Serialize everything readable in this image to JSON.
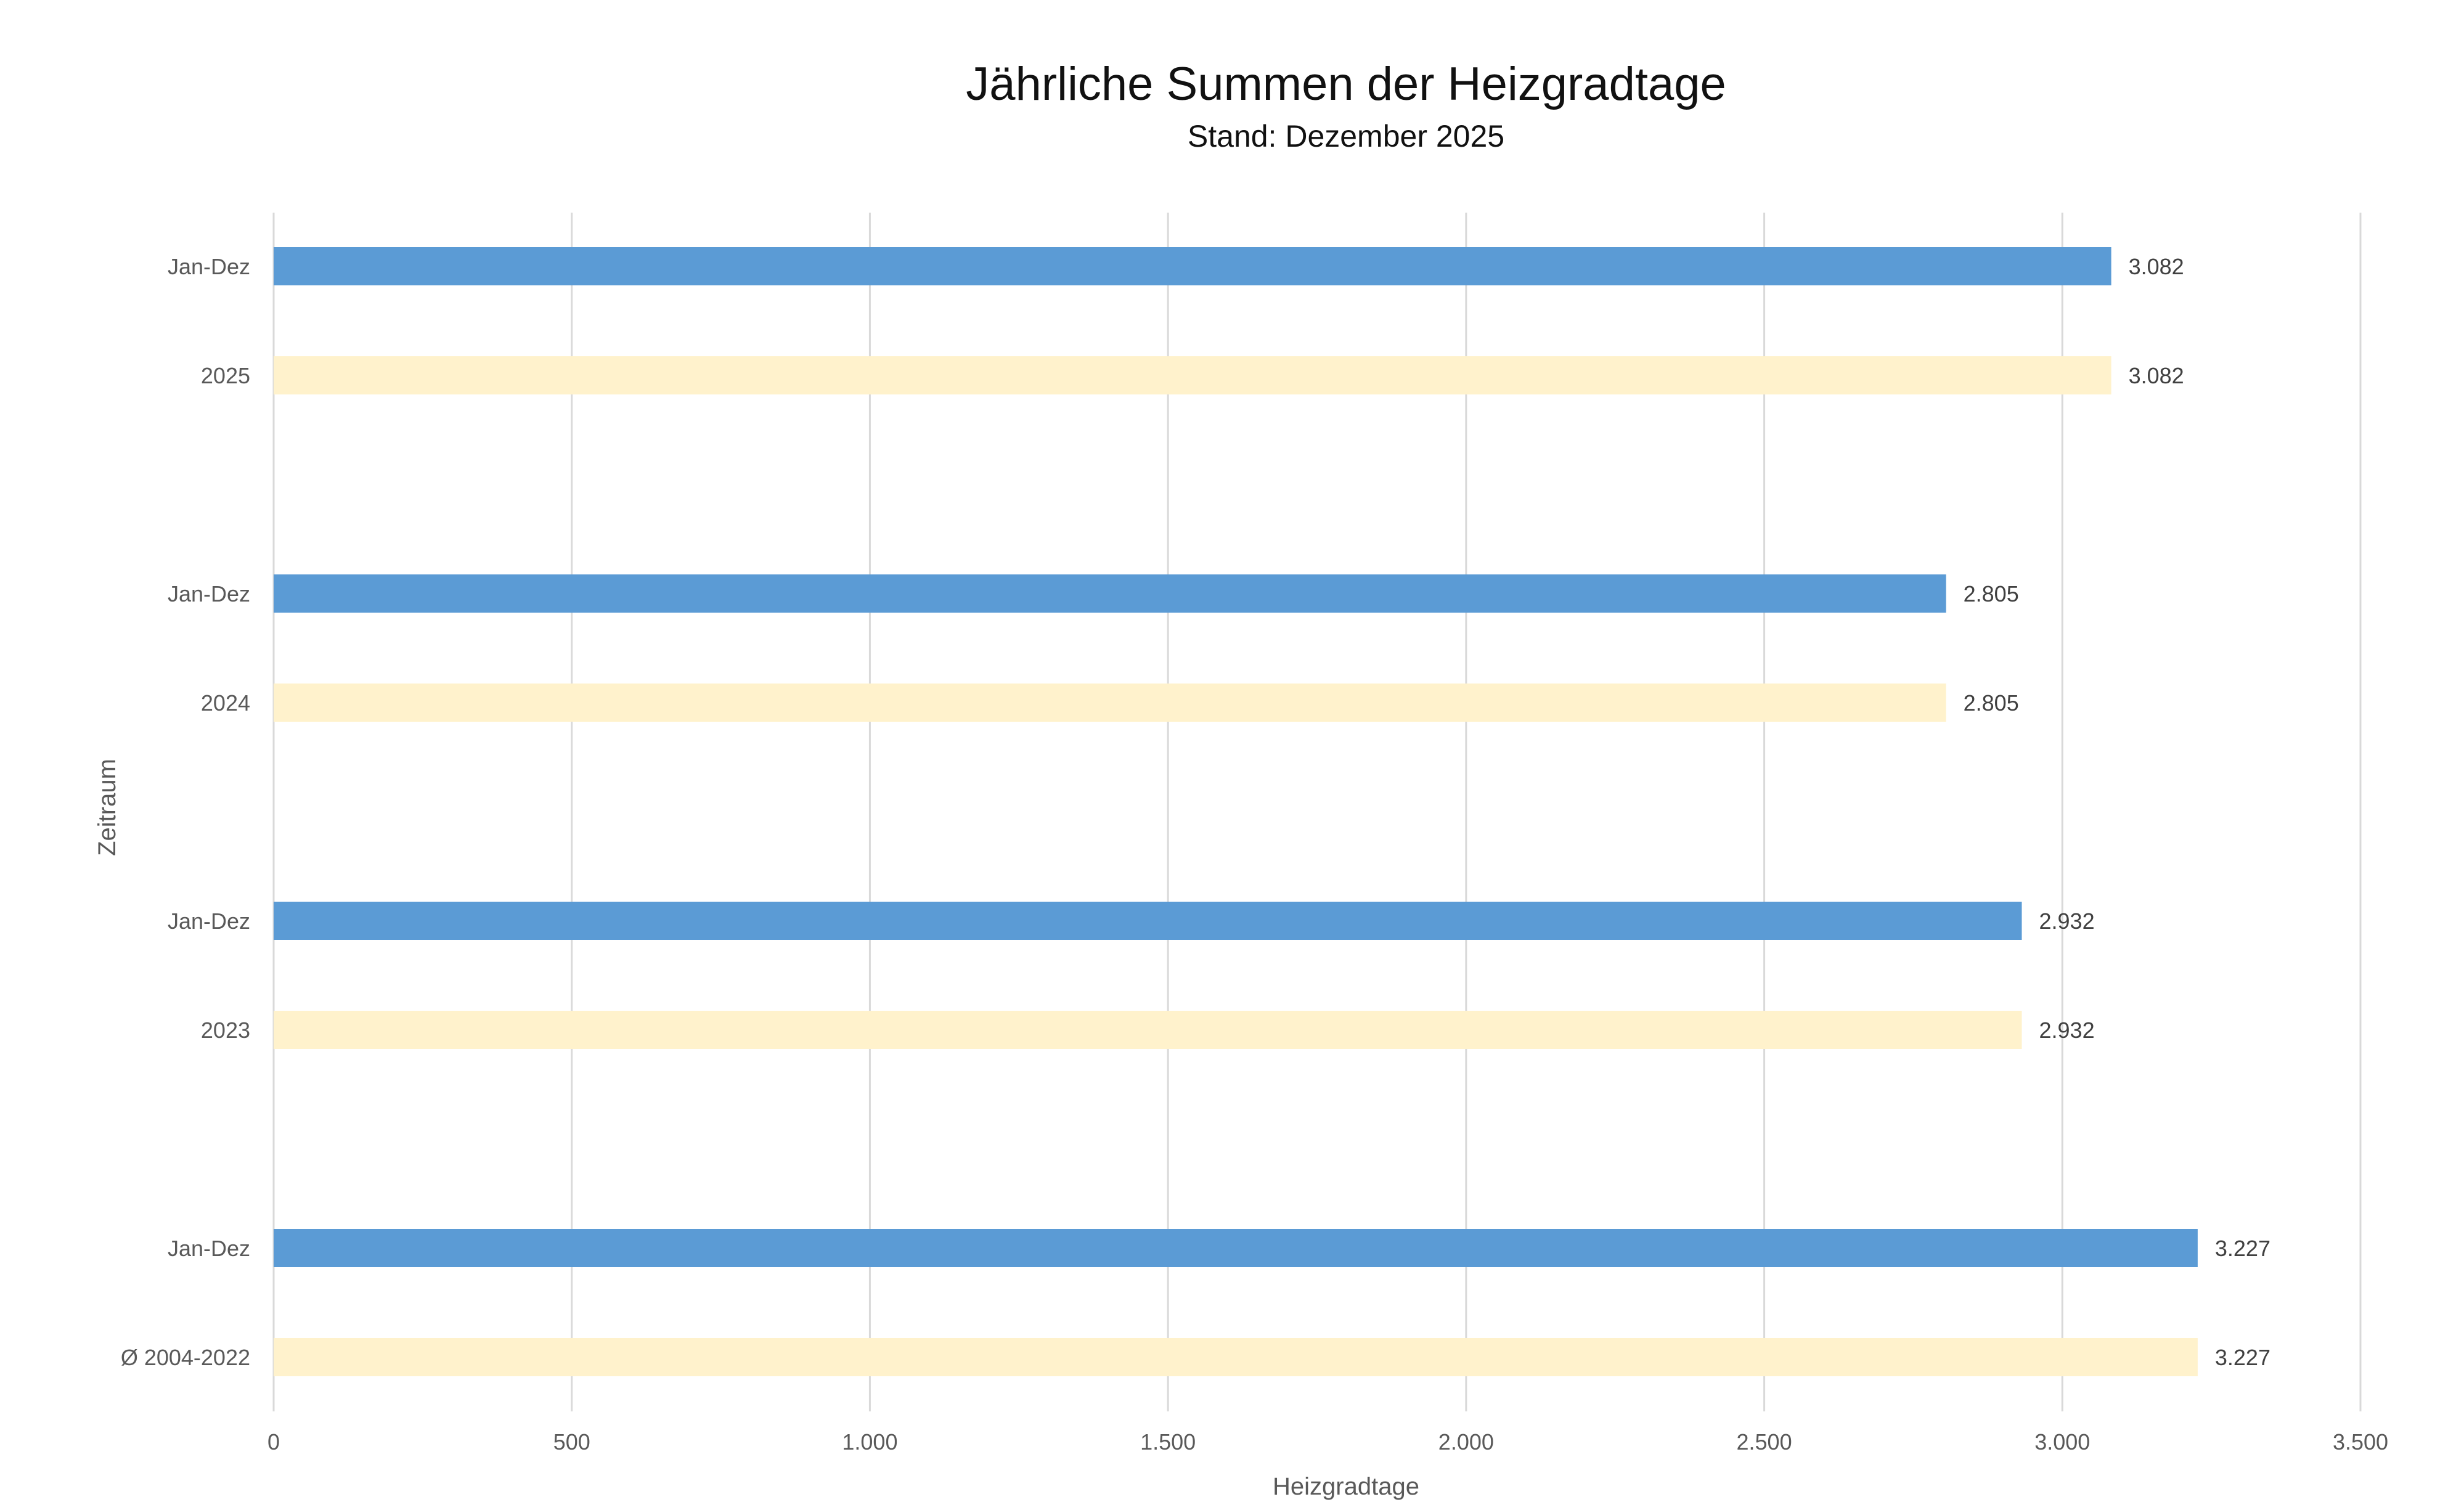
{
  "chart_data": {
    "type": "bar",
    "orientation": "horizontal",
    "title": "Jährliche Summen der Heizgradtage",
    "subtitle": "Stand: Dezember 2025",
    "xlabel": "Heizgradtage",
    "ylabel": "Zeitraum",
    "xlim": [
      0,
      3500
    ],
    "x_ticks": [
      0,
      500,
      1000,
      1500,
      2000,
      2500,
      3000,
      3500
    ],
    "x_tick_labels": [
      "0",
      "500",
      "1.000",
      "1.500",
      "2.000",
      "2.500",
      "3.000",
      "3.500"
    ],
    "grid": "vertical",
    "legend": "none",
    "categories": [
      "Jan-Dez",
      "2025",
      "Jan-Dez",
      "2024",
      "Jan-Dez",
      "2023",
      "Jan-Dez",
      "Ø 2004-2022"
    ],
    "groups": [
      {
        "bars": [
          {
            "category": "Jan-Dez",
            "value": 3082,
            "label": "3.082",
            "color": "#5b9bd5"
          },
          {
            "category": "2025",
            "value": 3082,
            "label": "3.082",
            "color": "#fff2cc"
          }
        ]
      },
      {
        "bars": [
          {
            "category": "Jan-Dez",
            "value": 2805,
            "label": "2.805",
            "color": "#5b9bd5"
          },
          {
            "category": "2024",
            "value": 2805,
            "label": "2.805",
            "color": "#fff2cc"
          }
        ]
      },
      {
        "bars": [
          {
            "category": "Jan-Dez",
            "value": 2932,
            "label": "2.932",
            "color": "#5b9bd5"
          },
          {
            "category": "2023",
            "value": 2932,
            "label": "2.932",
            "color": "#fff2cc"
          }
        ]
      },
      {
        "bars": [
          {
            "category": "Jan-Dez",
            "value": 3227,
            "label": "3.227",
            "color": "#5b9bd5"
          },
          {
            "category": "Ø 2004-2022",
            "value": 3227,
            "label": "3.227",
            "color": "#fff2cc"
          }
        ]
      }
    ]
  }
}
